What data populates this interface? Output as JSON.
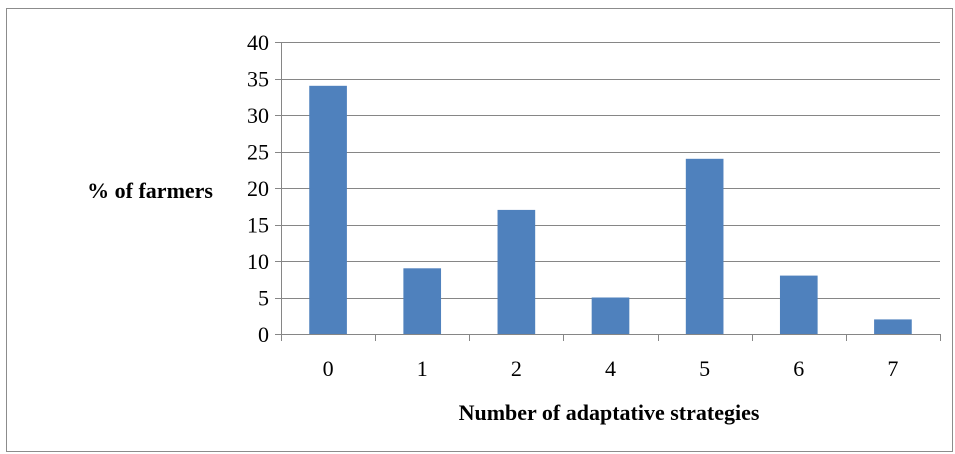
{
  "chart_data": {
    "type": "bar",
    "title": "",
    "xlabel": "Number of adaptative strategies",
    "ylabel": "% of farmers",
    "categories": [
      "0",
      "1",
      "2",
      "4",
      "5",
      "6",
      "7"
    ],
    "values": [
      34,
      9,
      17,
      5,
      24,
      8,
      2
    ],
    "ylim": [
      0,
      40
    ],
    "yticks": [
      0,
      5,
      10,
      15,
      20,
      25,
      30,
      35,
      40
    ],
    "grid": true,
    "legend": "none",
    "colors": {
      "bar": "#4f81bd",
      "grid": "#868686",
      "axis": "#868686"
    }
  }
}
